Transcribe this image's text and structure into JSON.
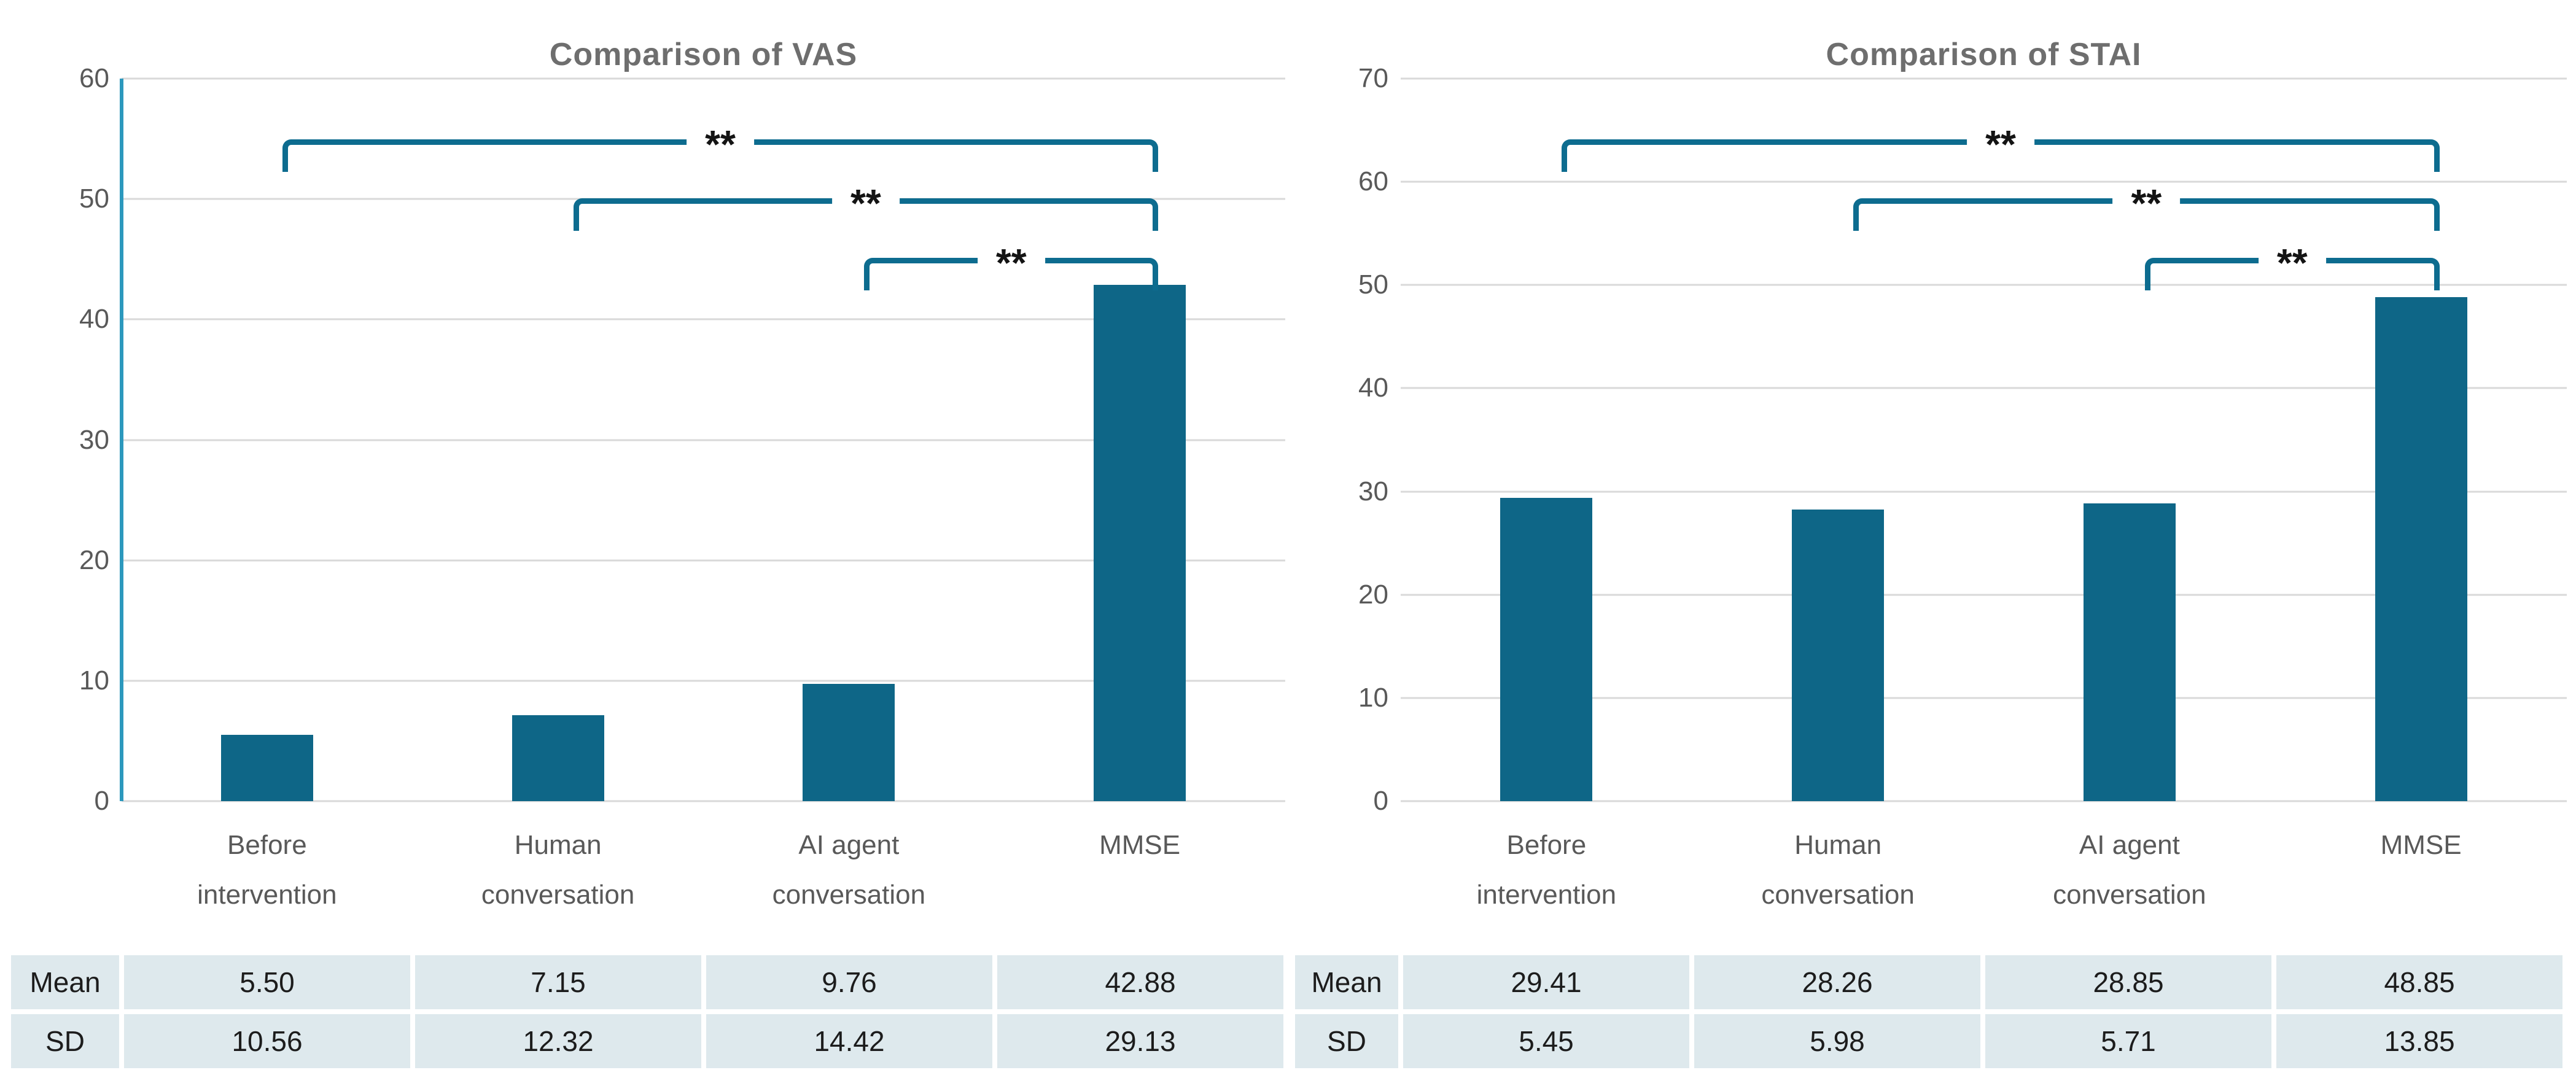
{
  "page": {
    "background": "#ffffff"
  },
  "chart_data": [
    {
      "type": "bar",
      "title": "Comparison of VAS",
      "categories": [
        "Before intervention",
        "Human conversation",
        "AI agent conversation",
        "MMSE"
      ],
      "values": [
        5.5,
        7.15,
        9.76,
        42.88
      ],
      "xlabel": "",
      "ylabel": "",
      "ylim": [
        0,
        60
      ],
      "ytick_labels": [
        "60",
        "50",
        "40",
        "30",
        "20",
        "10",
        "0"
      ],
      "grid": true,
      "legend_position": "none",
      "bar_color": "#0e6687",
      "axis_line_color": "#2c98bd",
      "gridline_color": "#d9d9d9",
      "significance": [
        {
          "from_category": "Before intervention",
          "to_category": "MMSE",
          "label": "**"
        },
        {
          "from_category": "Human conversation",
          "to_category": "MMSE",
          "label": "**"
        },
        {
          "from_category": "AI agent conversation",
          "to_category": "MMSE",
          "label": "**"
        }
      ],
      "table": {
        "row_headers": [
          "Mean",
          "SD"
        ],
        "mean": [
          "5.50",
          "7.15",
          "9.76",
          "42.88"
        ],
        "sd": [
          "10.56",
          "12.32",
          "14.42",
          "29.13"
        ]
      }
    },
    {
      "type": "bar",
      "title": "Comparison of STAI",
      "categories": [
        "Before intervention",
        "Human conversation",
        "AI agent conversation",
        "MMSE"
      ],
      "values": [
        29.41,
        28.26,
        28.85,
        48.85
      ],
      "xlabel": "",
      "ylabel": "",
      "ylim": [
        0,
        70
      ],
      "ytick_labels": [
        "70",
        "60",
        "50",
        "40",
        "30",
        "20",
        "10",
        "0"
      ],
      "grid": true,
      "legend_position": "none",
      "bar_color": "#0e6687",
      "gridline_color": "#d9d9d9",
      "significance": [
        {
          "from_category": "Before intervention",
          "to_category": "MMSE",
          "label": "**"
        },
        {
          "from_category": "Human conversation",
          "to_category": "MMSE",
          "label": "**"
        },
        {
          "from_category": "AI agent conversation",
          "to_category": "MMSE",
          "label": "**"
        }
      ],
      "table": {
        "row_headers": [
          "Mean",
          "SD"
        ],
        "mean": [
          "29.41",
          "28.26",
          "28.85",
          "48.85"
        ],
        "sd": [
          "5.45",
          "5.98",
          "5.71",
          "13.85"
        ]
      }
    }
  ]
}
